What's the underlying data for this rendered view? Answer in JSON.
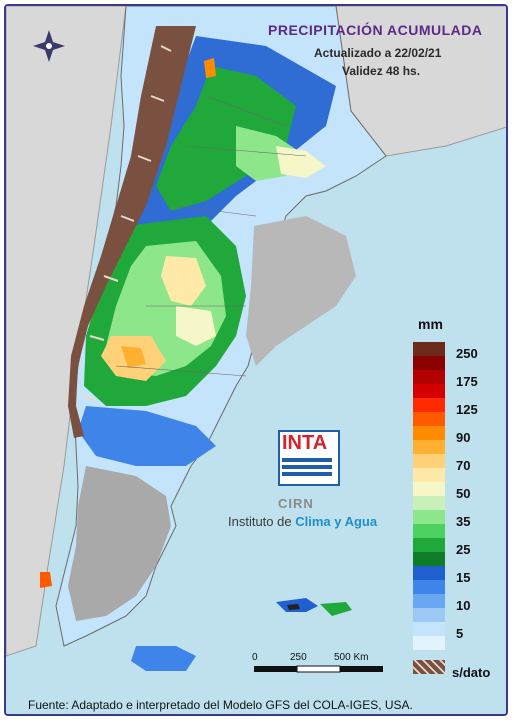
{
  "header": {
    "title": "PRECIPITACIÓN ACUMULADA",
    "updated": "Actualizado a 22/02/21",
    "validity": "Validez 48 hs."
  },
  "legend": {
    "unit": "mm",
    "classes": [
      {
        "label": "250",
        "color": "#6b2a1a"
      },
      {
        "label": "",
        "color": "#8b0000"
      },
      {
        "label": "175",
        "color": "#b30000"
      },
      {
        "label": "",
        "color": "#d40000"
      },
      {
        "label": "125",
        "color": "#ff2a00"
      },
      {
        "label": "",
        "color": "#ff5a00"
      },
      {
        "label": "90",
        "color": "#ff8c00"
      },
      {
        "label": "",
        "color": "#ffb030"
      },
      {
        "label": "70",
        "color": "#ffd27a"
      },
      {
        "label": "",
        "color": "#ffe9a8"
      },
      {
        "label": "50",
        "color": "#f6f7c8"
      },
      {
        "label": "",
        "color": "#c9f0b8"
      },
      {
        "label": "35",
        "color": "#8ee68a"
      },
      {
        "label": "",
        "color": "#4fd160"
      },
      {
        "label": "25",
        "color": "#21a83a"
      },
      {
        "label": "",
        "color": "#0f7c2a"
      },
      {
        "label": "15",
        "color": "#1f5fd0"
      },
      {
        "label": "",
        "color": "#3f84e8"
      },
      {
        "label": "10",
        "color": "#6aa7f2"
      },
      {
        "label": "",
        "color": "#9cc8f6"
      },
      {
        "label": "5",
        "color": "#c4e4fb"
      },
      {
        "label": "",
        "color": "#e2f4fd"
      }
    ],
    "nodata_label": "s/dato",
    "nodata_color": "#7a5040"
  },
  "logo": {
    "acronym": "INTA",
    "cirn": "CIRN",
    "org_prefix": "Instituto de ",
    "org_accent": "Clima y Agua"
  },
  "scale": {
    "labels": [
      "0",
      "250",
      "500 Km"
    ]
  },
  "source": "Fuente: Adaptado e interpretado del Modelo GFS del COLA-IGES, USA.",
  "colors": {
    "ocean": "#bfe1ee",
    "land_outside": "#d8d8d8",
    "relief": "#a9a9a9",
    "border": "#3a3a8c"
  },
  "icons": [
    "compass-rose-icon"
  ]
}
